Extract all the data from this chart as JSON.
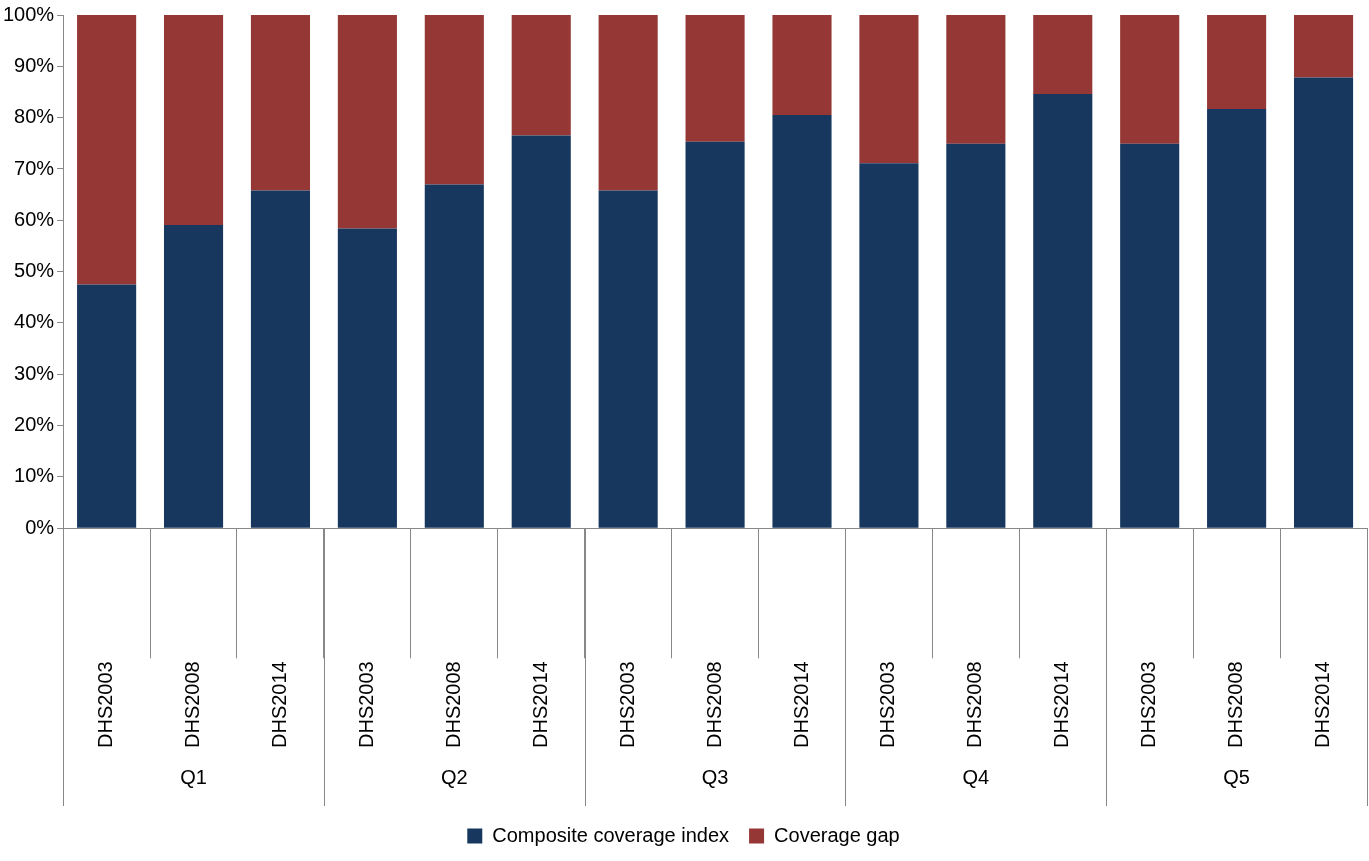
{
  "chart_data": {
    "type": "bar",
    "stacked": true,
    "categories": [
      "DHS2003",
      "DHS2008",
      "DHS2014",
      "DHS2003",
      "DHS2008",
      "DHS2014",
      "DHS2003",
      "DHS2008",
      "DHS2014",
      "DHS2003",
      "DHS2008",
      "DHS2014",
      "DHS2003",
      "DHS2008",
      "DHS2014"
    ],
    "series": [
      {
        "name": "Composite coverage index",
        "color": "#17375e",
        "values": [
          47.5,
          59.1,
          65.8,
          58.4,
          67.0,
          76.5,
          65.8,
          75.3,
          80.5,
          71.1,
          74.9,
          84.6,
          74.9,
          81.7,
          87.8
        ]
      },
      {
        "name": "Coverage gap",
        "color": "#953735",
        "values": [
          52.5,
          40.9,
          34.2,
          41.6,
          33.0,
          23.5,
          34.2,
          24.7,
          19.5,
          28.9,
          25.1,
          15.4,
          25.1,
          18.3,
          12.2
        ]
      }
    ],
    "ylim": [
      0,
      100
    ],
    "yticks": [
      {
        "value": 0,
        "label": "0%"
      },
      {
        "value": 10,
        "label": "10%"
      },
      {
        "value": 20,
        "label": "20%"
      },
      {
        "value": 30,
        "label": "30%"
      },
      {
        "value": 40,
        "label": "40%"
      },
      {
        "value": 50,
        "label": "50%"
      },
      {
        "value": 60,
        "label": "60%"
      },
      {
        "value": 70,
        "label": "70%"
      },
      {
        "value": 80,
        "label": "80%"
      },
      {
        "value": 90,
        "label": "90%"
      },
      {
        "value": 100,
        "label": "100%"
      }
    ],
    "annotations": [
      "Q1",
      "Q2",
      "Q3",
      "Q4",
      "Q5"
    ],
    "grid": false,
    "legend": "bottom"
  }
}
